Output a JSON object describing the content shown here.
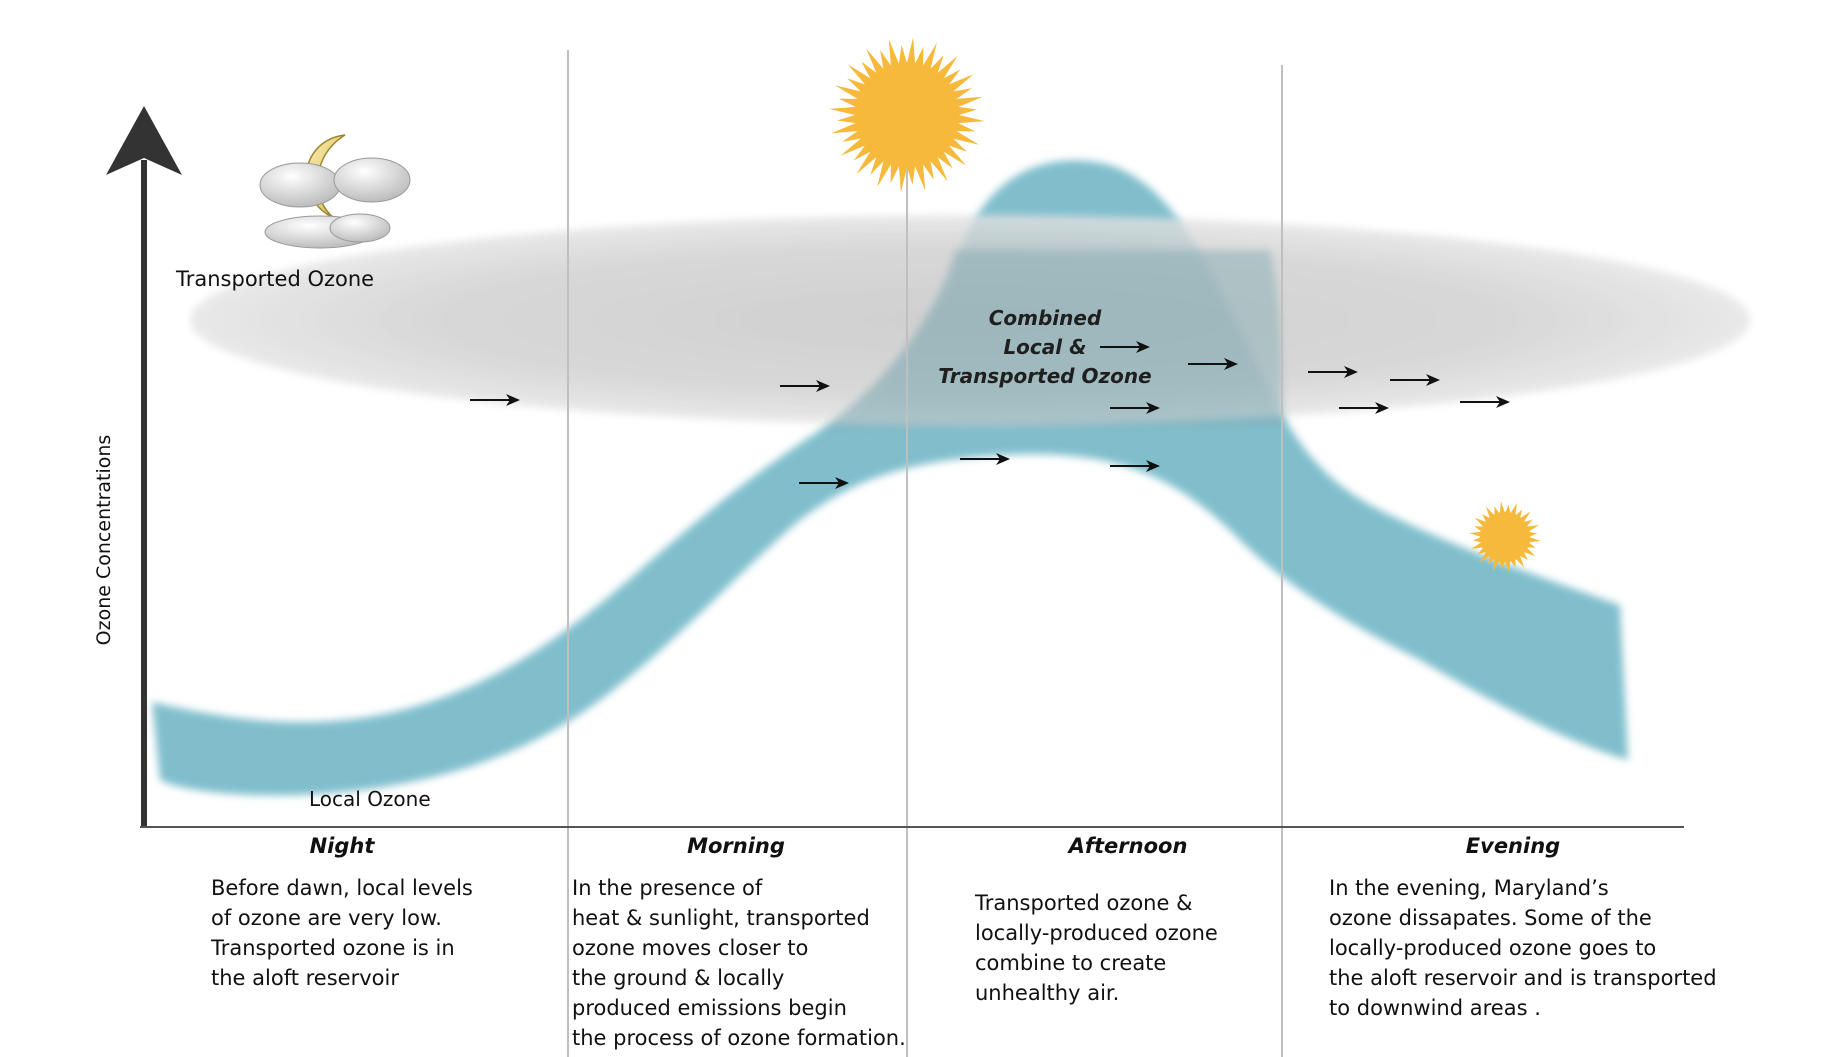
{
  "axis": {
    "y_title": "Ozone Concentrations"
  },
  "labels": {
    "transported_ozone": "Transported Ozone",
    "local_ozone": "Local Ozone",
    "combined": [
      "Combined",
      "Local &",
      "Transported Ozone"
    ]
  },
  "periods": [
    {
      "title": "Night",
      "lines": [
        "Before dawn, local levels",
        "of ozone are very low.",
        "Transported ozone is in",
        "the aloft reservoir"
      ]
    },
    {
      "title": "Morning",
      "lines": [
        "In the presence of",
        "heat & sunlight, transported",
        "ozone moves closer to",
        "the ground & locally",
        "produced emissions begin",
        "the process of ozone formation."
      ]
    },
    {
      "title": "Afternoon",
      "lines": [
        "Transported ozone &",
        "locally-produced ozone",
        "combine to create",
        "unhealthy air."
      ]
    },
    {
      "title": "Evening",
      "lines": [
        "In the evening, Maryland’s",
        "ozone dissapates. Some of the",
        "locally-produced ozone goes to",
        "the aloft reservoir and is transported",
        "to downwind areas ."
      ]
    }
  ],
  "icons": [
    "moon-cloud-icon",
    "sun-icon",
    "small-sun-icon",
    "arrow-icon"
  ],
  "colors": {
    "local_band": "#6fb6c6",
    "transported_band": "#c9c9c9",
    "axis": "#333333",
    "sun": "#f7b93b",
    "moon": "#f3df92"
  }
}
